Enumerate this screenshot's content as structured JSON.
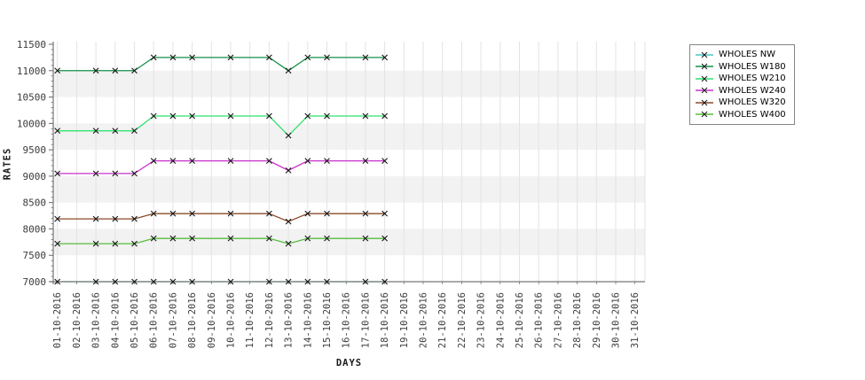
{
  "page": {
    "background": "#ffffff"
  },
  "axis_titles": {
    "xlabel": "DAYS",
    "ylabel": "RATES"
  },
  "style": {
    "band_color": "#f2f2f2",
    "gridline_color": "#e3e3e3",
    "axis_color": "#777777",
    "tick_color": "#666666",
    "tick_label_color": "#3c3c3c",
    "marker_color": "#141414",
    "legend_border": "#858585",
    "legend_bg": "#ffffff"
  },
  "chart_data": {
    "type": "line",
    "title": "",
    "xlabel": "DAYS",
    "ylabel": "RATES",
    "marker": "x",
    "grid": {
      "vertical": true,
      "alternating_horizontal_bands": true
    },
    "legend_position": "right",
    "ylim": [
      7000,
      11500
    ],
    "y_ticks": [
      7000,
      7500,
      8000,
      8500,
      9000,
      9500,
      10000,
      10500,
      11000,
      11500
    ],
    "y_minor_step": 100,
    "x_days": [
      1,
      2,
      3,
      4,
      5,
      6,
      7,
      8,
      9,
      10,
      11,
      12,
      13,
      14,
      15,
      16,
      17,
      18,
      19,
      20,
      21,
      22,
      23,
      24,
      25,
      26,
      27,
      28,
      29,
      30,
      31
    ],
    "x_tick_labels": [
      "01-10-2016",
      "02-10-2016",
      "03-10-2016",
      "04-10-2016",
      "05-10-2016",
      "06-10-2016",
      "07-10-2016",
      "08-10-2016",
      "09-10-2016",
      "10-10-2016",
      "11-10-2016",
      "12-10-2016",
      "13-10-2016",
      "14-10-2016",
      "15-10-2016",
      "16-10-2016",
      "17-10-2016",
      "18-10-2016",
      "19-10-2016",
      "20-10-2016",
      "21-10-2016",
      "22-10-2016",
      "23-10-2016",
      "24-10-2016",
      "25-10-2016",
      "26-10-2016",
      "27-10-2016",
      "28-10-2016",
      "29-10-2016",
      "30-10-2016",
      "31-10-2016"
    ],
    "days_with_data": [
      1,
      3,
      4,
      5,
      6,
      7,
      8,
      10,
      12,
      13,
      14,
      15,
      17,
      18
    ],
    "series": [
      {
        "name": "WHOLES NW",
        "color": "#4cc5c5",
        "values": [
          7000,
          7000,
          7000,
          7000,
          7000,
          7000,
          7000,
          7000,
          7000,
          7000,
          7000,
          7000,
          7000,
          7000
        ]
      },
      {
        "name": "WHOLES W180",
        "color": "#149048",
        "values": [
          11000,
          11000,
          11000,
          11000,
          11250,
          11250,
          11250,
          11250,
          11250,
          11000,
          11250,
          11250,
          11250,
          11250
        ]
      },
      {
        "name": "WHOLES W210",
        "color": "#2fe26f",
        "values": [
          9860,
          9860,
          9860,
          9860,
          10140,
          10140,
          10140,
          10140,
          10140,
          9770,
          10140,
          10140,
          10140,
          10140
        ]
      },
      {
        "name": "WHOLES W240",
        "color": "#ca30ca",
        "values": [
          9050,
          9050,
          9050,
          9050,
          9290,
          9290,
          9290,
          9290,
          9290,
          9110,
          9290,
          9290,
          9290,
          9290
        ]
      },
      {
        "name": "WHOLES W320",
        "color": "#8a4a28",
        "values": [
          8190,
          8190,
          8190,
          8190,
          8290,
          8290,
          8290,
          8290,
          8290,
          8140,
          8290,
          8290,
          8290,
          8290
        ]
      },
      {
        "name": "WHOLES W400",
        "color": "#56bd3c",
        "values": [
          7720,
          7720,
          7720,
          7720,
          7820,
          7820,
          7820,
          7820,
          7820,
          7720,
          7820,
          7820,
          7820,
          7820
        ]
      }
    ]
  }
}
